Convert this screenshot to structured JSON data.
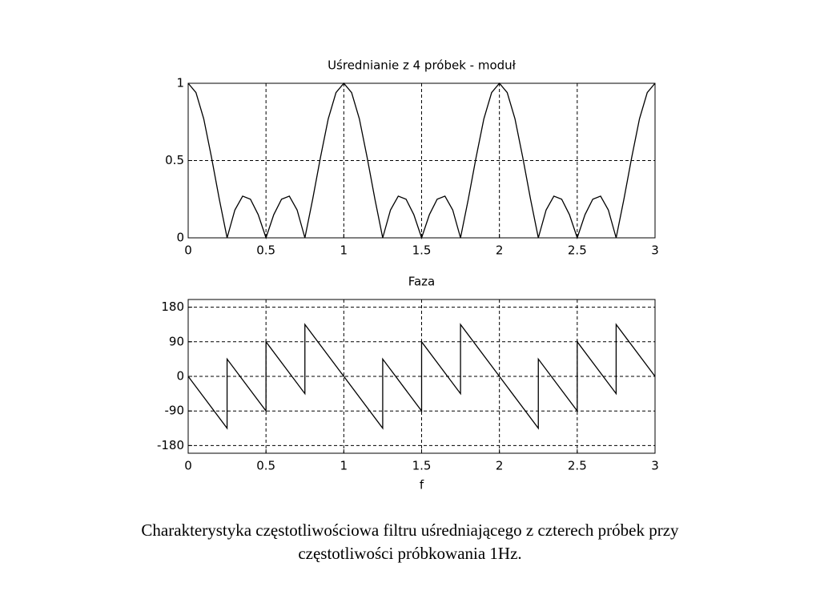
{
  "chart_data": [
    {
      "type": "line",
      "title": "Uśrednianie z 4 próbek - moduł",
      "x": [
        0,
        0.05,
        0.1,
        0.15,
        0.2,
        0.25,
        0.3,
        0.35,
        0.4,
        0.45,
        0.5,
        0.55,
        0.6,
        0.65,
        0.7,
        0.75,
        0.8,
        0.85,
        0.9,
        0.95,
        1,
        1.05,
        1.1,
        1.15,
        1.2,
        1.25,
        1.3,
        1.35,
        1.4,
        1.45,
        1.5,
        1.55,
        1.6,
        1.65,
        1.7,
        1.75,
        1.8,
        1.85,
        1.9,
        1.95,
        2,
        2.05,
        2.1,
        2.15,
        2.2,
        2.25,
        2.3,
        2.35,
        2.4,
        2.45,
        2.5,
        2.55,
        2.6,
        2.65,
        2.7,
        2.75,
        2.8,
        2.85,
        2.9,
        2.95,
        3
      ],
      "values": [
        1,
        0.94,
        0.77,
        0.52,
        0.25,
        0,
        0.18,
        0.27,
        0.25,
        0.15,
        0,
        0.15,
        0.25,
        0.27,
        0.18,
        0,
        0.25,
        0.52,
        0.77,
        0.94,
        1,
        0.94,
        0.77,
        0.52,
        0.25,
        0,
        0.18,
        0.27,
        0.25,
        0.15,
        0,
        0.15,
        0.25,
        0.27,
        0.18,
        0,
        0.25,
        0.52,
        0.77,
        0.94,
        1,
        0.94,
        0.77,
        0.52,
        0.25,
        0,
        0.18,
        0.27,
        0.25,
        0.15,
        0,
        0.15,
        0.25,
        0.27,
        0.18,
        0,
        0.25,
        0.52,
        0.77,
        0.94,
        1
      ],
      "color": "#000000",
      "xlim": [
        0,
        3
      ],
      "xticks": [
        0,
        0.5,
        1,
        1.5,
        2,
        2.5,
        3
      ],
      "ylim": [
        0,
        1
      ],
      "yticks": [
        0,
        0.5,
        1
      ],
      "grid": true
    },
    {
      "type": "line",
      "title": "Faza",
      "x_label": "f",
      "x": [
        0,
        0.25,
        0.25,
        0.5,
        0.5,
        0.75,
        0.75,
        1.25,
        1.25,
        1.5,
        1.5,
        1.75,
        1.75,
        2.25,
        2.25,
        2.5,
        2.5,
        2.75,
        2.75,
        3
      ],
      "values": [
        0,
        -135,
        45,
        -90,
        90,
        -45,
        135,
        -135,
        45,
        -90,
        90,
        -45,
        135,
        -135,
        45,
        -90,
        90,
        -45,
        135,
        0
      ],
      "color": "#000000",
      "xlim": [
        0,
        3
      ],
      "xticks": [
        0,
        0.5,
        1,
        1.5,
        2,
        2.5,
        3
      ],
      "ylim": [
        -200,
        200
      ],
      "yticks": [
        -180,
        -90,
        0,
        90,
        180
      ],
      "grid": true
    }
  ],
  "caption": [
    "Charakterystyka częstotliwościowa filtru uśredniającego z czterech próbek przy",
    "częstotliwości próbkowania 1Hz."
  ]
}
